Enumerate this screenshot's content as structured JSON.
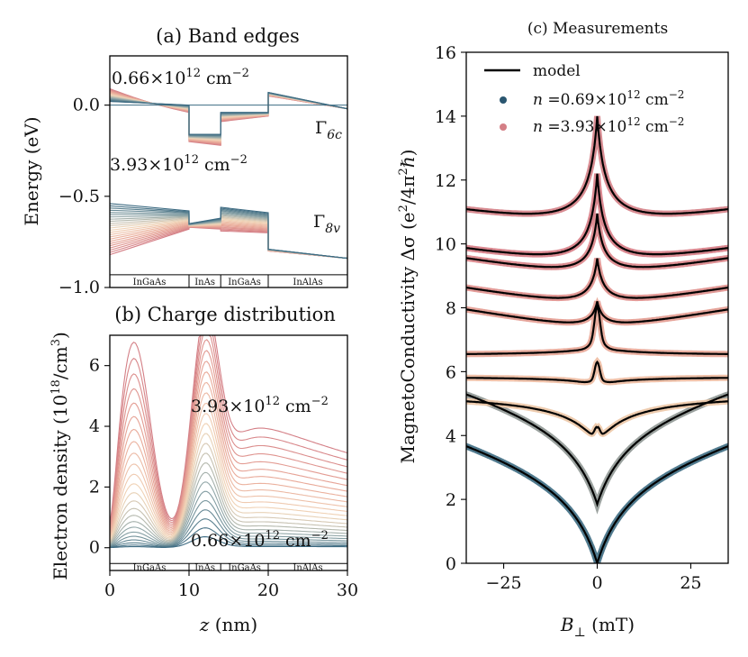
{
  "chart_data": [
    {
      "panel": "a",
      "type": "line",
      "title": "(a) Band edges",
      "ylabel": "Energy (eV)",
      "xlim": [
        0,
        30
      ],
      "ylim": [
        -1.0,
        0.27
      ],
      "yticks": [
        "0.0",
        "−0.5",
        "−1.0"
      ],
      "ytick_values": [
        0,
        -0.5,
        -1.0
      ],
      "layers": [
        {
          "name": "InGaAs",
          "from": 0,
          "to": 10
        },
        {
          "name": "InAs",
          "from": 10,
          "to": 14
        },
        {
          "name": "InGaAs",
          "from": 14,
          "to": 20
        },
        {
          "name": "InAlAs",
          "from": 20,
          "to": 30
        }
      ],
      "bands": [
        {
          "name": "Γ6c",
          "label_main": "Γ",
          "label_sub": "6c"
        },
        {
          "name": "Γ8v",
          "label_main": "Γ",
          "label_sub": "8v"
        }
      ],
      "annotations": [
        {
          "mantissa": "0.66",
          "unit": "cm",
          "exp10": "12",
          "unit_exp": "−2"
        },
        {
          "mantissa": "3.93",
          "unit": "cm",
          "exp10": "12",
          "unit_exp": "−2"
        }
      ],
      "density_range_1e12_cm2": [
        0.66,
        3.93
      ],
      "n_curves": 24,
      "conduction_band_low_density": [
        {
          "z": 0,
          "E": 0.02
        },
        {
          "z": 10,
          "E": 0.0
        },
        {
          "z": 10,
          "E": -0.16
        },
        {
          "z": 14,
          "E": -0.16
        },
        {
          "z": 14,
          "E": -0.04
        },
        {
          "z": 20,
          "E": -0.04
        },
        {
          "z": 20,
          "E": 0.07
        },
        {
          "z": 30,
          "E": -0.02
        }
      ],
      "conduction_band_high_density": [
        {
          "z": 0,
          "E": 0.09
        },
        {
          "z": 10,
          "E": -0.04
        },
        {
          "z": 10,
          "E": -0.2
        },
        {
          "z": 14,
          "E": -0.22
        },
        {
          "z": 14,
          "E": -0.09
        },
        {
          "z": 20,
          "E": -0.06
        },
        {
          "z": 20,
          "E": 0.05
        },
        {
          "z": 30,
          "E": -0.02
        }
      ]
    },
    {
      "panel": "b",
      "type": "line",
      "title": "(b) Charge distribution",
      "xlabel_main": "z",
      "xlabel_unit": "(nm)",
      "ylabel": "Electron density (10",
      "ylabel_exp": "18",
      "ylabel_unit": "/cm",
      "ylabel_unit_exp": "3",
      "ylabel_close": ")",
      "xlim": [
        0,
        30
      ],
      "ylim": [
        -0.75,
        7.0
      ],
      "xticks": [
        "0",
        "10",
        "20",
        "30"
      ],
      "xtick_values": [
        0,
        10,
        20,
        30
      ],
      "yticks": [
        "0",
        "2",
        "4",
        "6"
      ],
      "ytick_values": [
        0,
        2,
        4,
        6
      ],
      "layers": [
        {
          "name": "InGaAs",
          "from": 0,
          "to": 10
        },
        {
          "name": "InAs",
          "from": 10,
          "to": 14
        },
        {
          "name": "InGaAs",
          "from": 14,
          "to": 20
        },
        {
          "name": "InAlAs",
          "from": 20,
          "to": 30
        }
      ],
      "annotations": [
        {
          "mantissa": "3.93",
          "unit": "cm",
          "exp10": "12",
          "unit_exp": "−2"
        },
        {
          "mantissa": "0.66",
          "unit": "cm",
          "exp10": "12",
          "unit_exp": "−2"
        }
      ],
      "n_curves": 24,
      "peak_density_low": 0.35,
      "peak_density_high": 6.8,
      "features": {
        "peak1_z": 3.0,
        "peak2_z": 12.0,
        "valley_z": 8.0
      }
    },
    {
      "panel": "c",
      "type": "line",
      "title": "(c) Measurements",
      "xlabel_main": "B",
      "xlabel_sub": "⊥",
      "xlabel_unit": "(mT)",
      "ylabel": "MagnetoConductivity Δσ  (e",
      "ylabel_exp": "2",
      "ylabel_mid": "/4π",
      "ylabel_exp2": "2",
      "ylabel_end": "ℏ)",
      "xlim": [
        -35,
        35
      ],
      "ylim": [
        0,
        16
      ],
      "xticks": [
        "−25",
        "0",
        "25"
      ],
      "xtick_values": [
        -25,
        0,
        25
      ],
      "yticks": [
        "0",
        "2",
        "4",
        "6",
        "8",
        "10",
        "12",
        "14",
        "16"
      ],
      "ytick_values": [
        0,
        2,
        4,
        6,
        8,
        10,
        12,
        14,
        16
      ],
      "legend": [
        {
          "kind": "line",
          "label": "model"
        },
        {
          "kind": "marker",
          "color": "#2a5670",
          "label_n": "n",
          "label_eq": "=0.69",
          "label_times": "×10",
          "label_exp": "12",
          "label_unit": "cm",
          "label_unit_exp": "−2"
        },
        {
          "kind": "marker",
          "color": "#d47f86",
          "label_n": "n",
          "label_eq": "=3.93",
          "label_times": "×10",
          "label_exp": "12",
          "label_unit": "cm",
          "label_unit_exp": "−2"
        }
      ],
      "series": [
        {
          "offset": 0.0,
          "shape": "dip",
          "amp": 3.2,
          "width": 9.0,
          "color": "#3d6b82"
        },
        {
          "offset": 1.85,
          "shape": "dip",
          "amp": 3.0,
          "width": 9.0,
          "color": "#8f9794"
        },
        {
          "offset": 3.8,
          "shape": "mixed",
          "peak": 0.45,
          "peak_w": 0.9,
          "dip": 1.7,
          "dip_w": 8.0,
          "color": "#ecc6a6"
        },
        {
          "offset": 5.7,
          "shape": "mixed",
          "peak": 0.6,
          "peak_w": 0.9,
          "dip": 0.3,
          "dip_w": 6.0,
          "color": "#ecb99e"
        },
        {
          "offset": 7.05,
          "shape": "mixed",
          "peak": 1.0,
          "peak_w": 1.0,
          "dip": -0.3,
          "dip_w": 7.0,
          "color": "#e7a595"
        },
        {
          "offset": 7.2,
          "shape": "peak",
          "amp": 1.0,
          "width": 1.8,
          "color": "#e39b90"
        },
        {
          "offset": 7.85,
          "shape": "peak",
          "amp": 1.7,
          "width": 1.8,
          "color": "#df8f8c"
        },
        {
          "offset": 8.75,
          "shape": "peak",
          "amp": 2.2,
          "width": 1.8,
          "color": "#da8488"
        },
        {
          "offset": 9.0,
          "shape": "peak",
          "amp": 3.2,
          "width": 2.0,
          "color": "#d67b84"
        },
        {
          "offset": 10.15,
          "shape": "peak",
          "amp": 3.85,
          "width": 2.3,
          "color": "#d47f86"
        }
      ]
    }
  ]
}
